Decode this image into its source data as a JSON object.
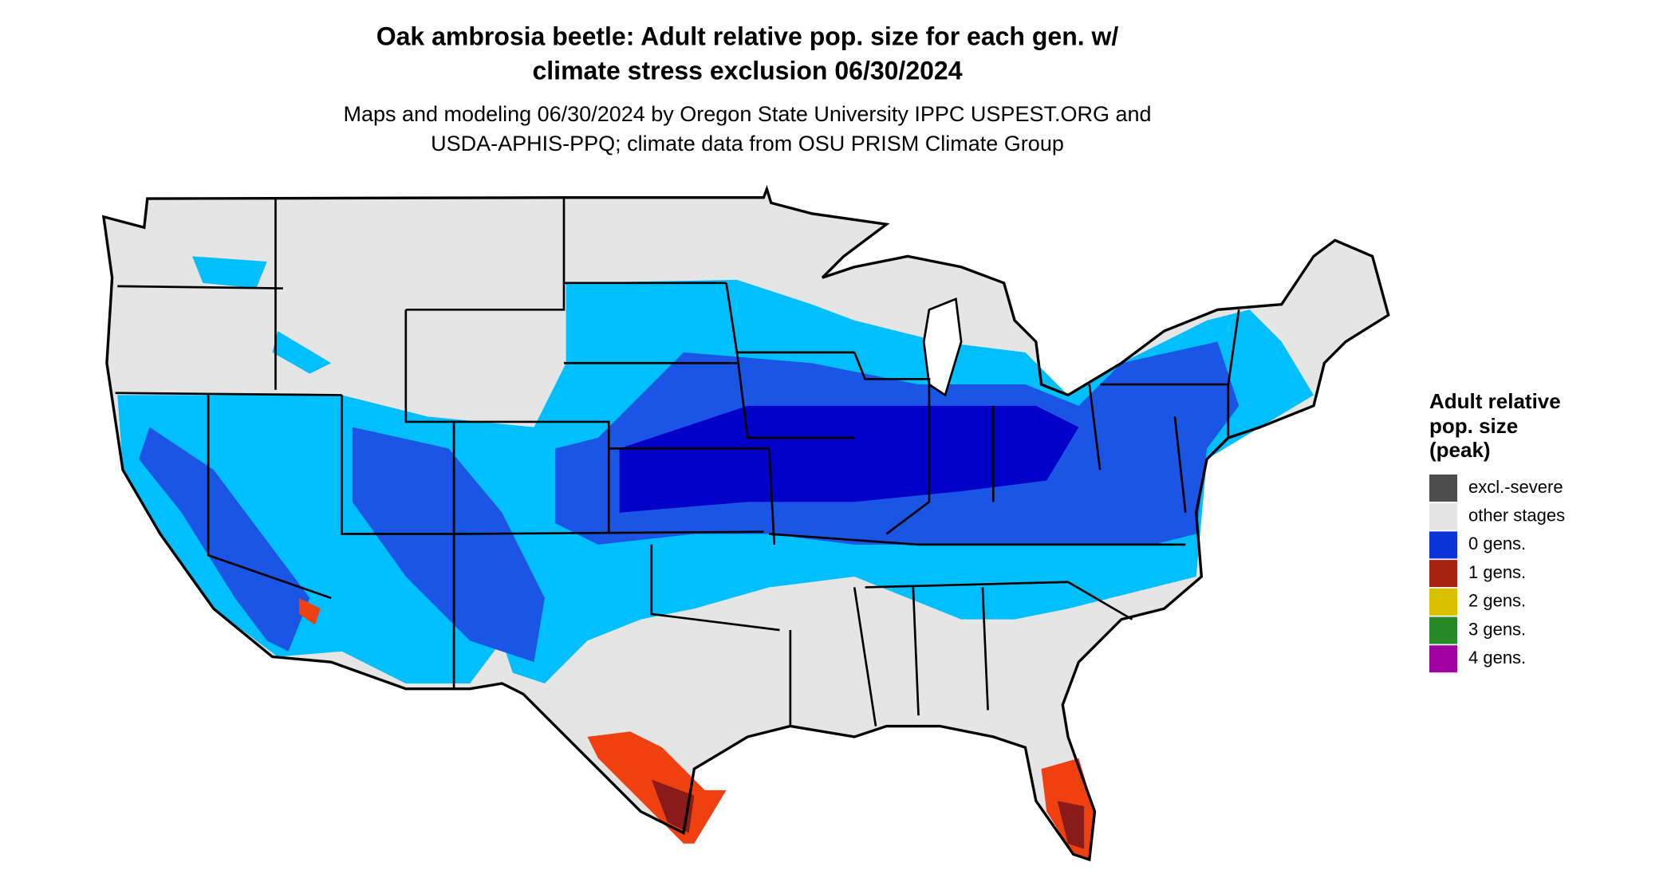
{
  "title": [
    "Oak ambrosia beetle: Adult relative pop. size for each gen. w/",
    "climate stress exclusion 06/30/2024"
  ],
  "subtitle": [
    "Maps and modeling 06/30/2024 by Oregon State University IPPC USPEST.ORG and",
    "USDA-APHIS-PPQ; climate data from OSU PRISM Climate Group"
  ],
  "legend": {
    "title": [
      "Adult relative",
      "pop. size",
      "(peak)"
    ],
    "items": [
      {
        "label": "excl.-severe",
        "color": "#4d4d4d"
      },
      {
        "label": "other stages",
        "color": "#e5e5e5"
      },
      {
        "label": "0 gens.",
        "color": "#0a33d8"
      },
      {
        "label": "1 gens.",
        "color": "#a8200f"
      },
      {
        "label": "2 gens.",
        "color": "#d9c100"
      },
      {
        "label": "3 gens.",
        "color": "#278a27"
      },
      {
        "label": "4 gens.",
        "color": "#a000a0"
      }
    ]
  }
}
